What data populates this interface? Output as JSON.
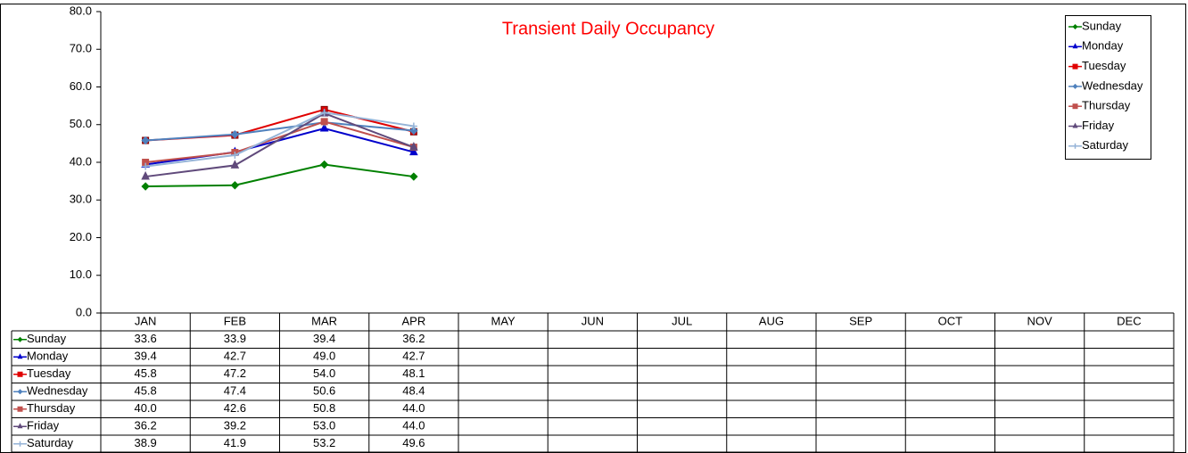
{
  "chart_data": {
    "type": "line",
    "title": "Transient Daily Occupancy",
    "categories": [
      "JAN",
      "FEB",
      "MAR",
      "APR",
      "MAY",
      "JUN",
      "JUL",
      "AUG",
      "SEP",
      "OCT",
      "NOV",
      "DEC"
    ],
    "ylim": [
      0,
      80
    ],
    "yticks": [
      {
        "value": 0,
        "label": "0.0"
      },
      {
        "value": 10,
        "label": "10.0"
      },
      {
        "value": 20,
        "label": "20.0"
      },
      {
        "value": 30,
        "label": "30.0"
      },
      {
        "value": 40,
        "label": "40.0"
      },
      {
        "value": 50,
        "label": "50.0"
      },
      {
        "value": 60,
        "label": "60.0"
      },
      {
        "value": 70,
        "label": "70.0"
      },
      {
        "value": 80,
        "label": "80.0"
      }
    ],
    "legend": "top-right",
    "series": [
      {
        "name": "Sunday",
        "color": "#008000",
        "marker": "diamond",
        "values": [
          33.6,
          33.9,
          39.4,
          36.2,
          null,
          null,
          null,
          null,
          null,
          null,
          null,
          null
        ],
        "value_labels": [
          "33.6",
          "33.9",
          "39.4",
          "36.2",
          null,
          null,
          null,
          null,
          null,
          null,
          null,
          null
        ]
      },
      {
        "name": "Monday",
        "color": "#0000cc",
        "marker": "triangle",
        "values": [
          39.4,
          42.7,
          49.0,
          42.7,
          null,
          null,
          null,
          null,
          null,
          null,
          null,
          null
        ],
        "value_labels": [
          "39.4",
          "42.7",
          "49.0",
          "42.7",
          null,
          null,
          null,
          null,
          null,
          null,
          null,
          null
        ]
      },
      {
        "name": "Tuesday",
        "color": "#e00000",
        "marker": "square",
        "values": [
          45.8,
          47.2,
          54.0,
          48.1,
          null,
          null,
          null,
          null,
          null,
          null,
          null,
          null
        ],
        "value_labels": [
          "45.8",
          "47.2",
          "54.0",
          "48.1",
          null,
          null,
          null,
          null,
          null,
          null,
          null,
          null
        ]
      },
      {
        "name": "Wednesday",
        "color": "#4f81bd",
        "marker": "diamond",
        "values": [
          45.8,
          47.4,
          50.6,
          48.4,
          null,
          null,
          null,
          null,
          null,
          null,
          null,
          null
        ],
        "value_labels": [
          "45.8",
          "47.4",
          "50.6",
          "48.4",
          null,
          null,
          null,
          null,
          null,
          null,
          null,
          null
        ]
      },
      {
        "name": "Thursday",
        "color": "#c0504d",
        "marker": "square",
        "values": [
          40.0,
          42.6,
          50.8,
          44.0,
          null,
          null,
          null,
          null,
          null,
          null,
          null,
          null
        ],
        "value_labels": [
          "40.0",
          "42.6",
          "50.8",
          "44.0",
          null,
          null,
          null,
          null,
          null,
          null,
          null,
          null
        ]
      },
      {
        "name": "Friday",
        "color": "#604a7b",
        "marker": "triangle",
        "values": [
          36.2,
          39.2,
          53.0,
          44.0,
          null,
          null,
          null,
          null,
          null,
          null,
          null,
          null
        ],
        "value_labels": [
          "36.2",
          "39.2",
          "53.0",
          "44.0",
          null,
          null,
          null,
          null,
          null,
          null,
          null,
          null
        ]
      },
      {
        "name": "Saturday",
        "color": "#95b3d7",
        "marker": "plus",
        "values": [
          38.9,
          41.9,
          53.2,
          49.6,
          null,
          null,
          null,
          null,
          null,
          null,
          null,
          null
        ],
        "value_labels": [
          "38.9",
          "41.9",
          "53.2",
          "49.6",
          null,
          null,
          null,
          null,
          null,
          null,
          null,
          null
        ]
      }
    ]
  }
}
